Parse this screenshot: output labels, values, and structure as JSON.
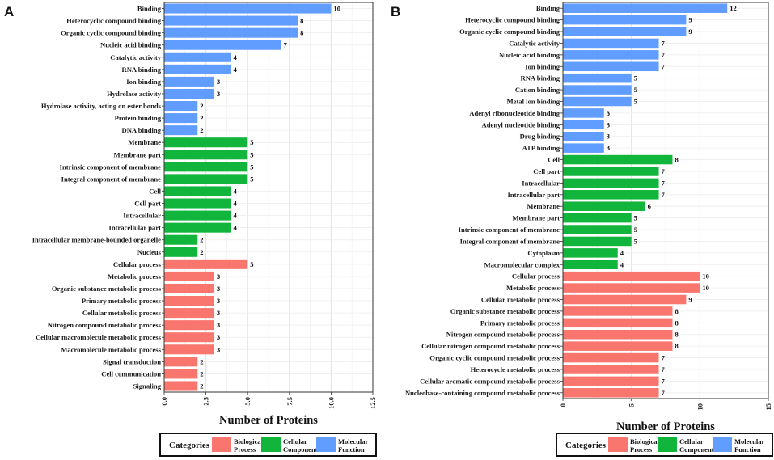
{
  "colors": {
    "Biological Process": "#f8766d",
    "Cellular Component": "#11b53c",
    "Molecular Function": "#619cff"
  },
  "chart_data": [
    {
      "panel": "A",
      "type": "bar",
      "orientation": "horizontal",
      "xlabel": "Number of Proteins",
      "xlim": [
        0,
        12.5
      ],
      "xticks": [
        "0.0",
        "2.5",
        "5.0",
        "7.5",
        "10.0",
        "12.5"
      ],
      "legend": {
        "title": "Categories",
        "items": [
          {
            "name": "Biological Process",
            "line1": "Biological",
            "line2": "Process"
          },
          {
            "name": "Cellular Component",
            "line1": "Cellular",
            "line2": "Component"
          },
          {
            "name": "Molecular Function",
            "line1": "Molecular",
            "line2": "Function"
          }
        ]
      },
      "bars": [
        {
          "label": "Binding",
          "value": 10,
          "category": "Molecular Function"
        },
        {
          "label": "Heterocyclic compound binding",
          "value": 8,
          "category": "Molecular Function"
        },
        {
          "label": "Organic cyclic compound binding",
          "value": 8,
          "category": "Molecular Function"
        },
        {
          "label": "Nucleic acid binding",
          "value": 7,
          "category": "Molecular Function"
        },
        {
          "label": "Catalytic activity",
          "value": 4,
          "category": "Molecular Function"
        },
        {
          "label": "RNA binding",
          "value": 4,
          "category": "Molecular Function"
        },
        {
          "label": "Ion binding",
          "value": 3,
          "category": "Molecular Function"
        },
        {
          "label": "Hydrolase activity",
          "value": 3,
          "category": "Molecular Function"
        },
        {
          "label": "Hydrolase activity, acting on ester bonds",
          "value": 2,
          "category": "Molecular Function"
        },
        {
          "label": "Protein binding",
          "value": 2,
          "category": "Molecular Function"
        },
        {
          "label": "DNA binding",
          "value": 2,
          "category": "Molecular Function"
        },
        {
          "label": "Membrane",
          "value": 5,
          "category": "Cellular Component"
        },
        {
          "label": "Membrane part",
          "value": 5,
          "category": "Cellular Component"
        },
        {
          "label": "Intrinsic component of membrane",
          "value": 5,
          "category": "Cellular Component"
        },
        {
          "label": "Integral component of membrane",
          "value": 5,
          "category": "Cellular Component"
        },
        {
          "label": "Cell",
          "value": 4,
          "category": "Cellular Component"
        },
        {
          "label": "Cell part",
          "value": 4,
          "category": "Cellular Component"
        },
        {
          "label": "Intracellular",
          "value": 4,
          "category": "Cellular Component"
        },
        {
          "label": "Intracellular part",
          "value": 4,
          "category": "Cellular Component"
        },
        {
          "label": "Intracellular membrane-bounded organelle",
          "value": 2,
          "category": "Cellular Component"
        },
        {
          "label": "Nucleus",
          "value": 2,
          "category": "Cellular Component"
        },
        {
          "label": "Cellular process",
          "value": 5,
          "category": "Biological Process"
        },
        {
          "label": "Metabolic process",
          "value": 3,
          "category": "Biological Process"
        },
        {
          "label": "Organic substance metabolic process",
          "value": 3,
          "category": "Biological Process"
        },
        {
          "label": "Primary metabolic process",
          "value": 3,
          "category": "Biological Process"
        },
        {
          "label": "Cellular metabolic process",
          "value": 3,
          "category": "Biological Process"
        },
        {
          "label": "Nitrogen compound metabolic process",
          "value": 3,
          "category": "Biological Process"
        },
        {
          "label": "Cellular macromolecule metabolic process",
          "value": 3,
          "category": "Biological Process"
        },
        {
          "label": "Macromolecule metabolic process",
          "value": 3,
          "category": "Biological Process"
        },
        {
          "label": "Signal transduction",
          "value": 2,
          "category": "Biological Process"
        },
        {
          "label": "Cell communication",
          "value": 2,
          "category": "Biological Process"
        },
        {
          "label": "Signaling",
          "value": 2,
          "category": "Biological Process"
        }
      ]
    },
    {
      "panel": "B",
      "type": "bar",
      "orientation": "horizontal",
      "xlabel": "Number of Proteins",
      "xlim": [
        0,
        15
      ],
      "xticks": [
        "0",
        "5",
        "10",
        "15"
      ],
      "legend": {
        "title": "Categories",
        "items": [
          {
            "name": "Biological Process",
            "line1": "Biological",
            "line2": "Process"
          },
          {
            "name": "Cellular Component",
            "line1": "Cellular",
            "line2": "Component"
          },
          {
            "name": "Molecular Function",
            "line1": "Molecular",
            "line2": "Function"
          }
        ]
      },
      "bars": [
        {
          "label": "Binding",
          "value": 12,
          "category": "Molecular Function"
        },
        {
          "label": "Heterocyclic compound binding",
          "value": 9,
          "category": "Molecular Function"
        },
        {
          "label": "Organic cyclic compound binding",
          "value": 9,
          "category": "Molecular Function"
        },
        {
          "label": "Catalytic activity",
          "value": 7,
          "category": "Molecular Function"
        },
        {
          "label": "Nucleic acid binding",
          "value": 7,
          "category": "Molecular Function"
        },
        {
          "label": "Ion binding",
          "value": 7,
          "category": "Molecular Function"
        },
        {
          "label": "RNA binding",
          "value": 5,
          "category": "Molecular Function"
        },
        {
          "label": "Cation binding",
          "value": 5,
          "category": "Molecular Function"
        },
        {
          "label": "Metal ion binding",
          "value": 5,
          "category": "Molecular Function"
        },
        {
          "label": "Adenyl ribonucleotide binding",
          "value": 3,
          "category": "Molecular Function"
        },
        {
          "label": "Adenyl nucleotide binding",
          "value": 3,
          "category": "Molecular Function"
        },
        {
          "label": "Drug binding",
          "value": 3,
          "category": "Molecular Function"
        },
        {
          "label": "ATP binding",
          "value": 3,
          "category": "Molecular Function"
        },
        {
          "label": "Cell",
          "value": 8,
          "category": "Cellular Component"
        },
        {
          "label": "Cell part",
          "value": 7,
          "category": "Cellular Component"
        },
        {
          "label": "Intracellular",
          "value": 7,
          "category": "Cellular Component"
        },
        {
          "label": "Intracellular part",
          "value": 7,
          "category": "Cellular Component"
        },
        {
          "label": "Membrane",
          "value": 6,
          "category": "Cellular Component"
        },
        {
          "label": "Membrane part",
          "value": 5,
          "category": "Cellular Component"
        },
        {
          "label": "Intrinsic component of membrane",
          "value": 5,
          "category": "Cellular Component"
        },
        {
          "label": "Integral component of membrane",
          "value": 5,
          "category": "Cellular Component"
        },
        {
          "label": "Cytoplasm",
          "value": 4,
          "category": "Cellular Component"
        },
        {
          "label": "Macromolecular complex",
          "value": 4,
          "category": "Cellular Component"
        },
        {
          "label": "Cellular process",
          "value": 10,
          "category": "Biological Process"
        },
        {
          "label": "Metabolic process",
          "value": 10,
          "category": "Biological Process"
        },
        {
          "label": "Cellular metabolic process",
          "value": 9,
          "category": "Biological Process"
        },
        {
          "label": "Organic substance metabolic process",
          "value": 8,
          "category": "Biological Process"
        },
        {
          "label": "Primary metabolic process",
          "value": 8,
          "category": "Biological Process"
        },
        {
          "label": "Nitrogen compound metabolic process",
          "value": 8,
          "category": "Biological Process"
        },
        {
          "label": "Cellular nitrogen compound metabolic process",
          "value": 8,
          "category": "Biological Process"
        },
        {
          "label": "Organic cyclic compound metabolic process",
          "value": 7,
          "category": "Biological Process"
        },
        {
          "label": "Heterocycle metabolic process",
          "value": 7,
          "category": "Biological Process"
        },
        {
          "label": "Cellular aromatic compound metabolic process",
          "value": 7,
          "category": "Biological Process"
        },
        {
          "label": "Nucleobase-containing compound metabolic process",
          "value": 7,
          "category": "Biological Process"
        }
      ]
    }
  ]
}
